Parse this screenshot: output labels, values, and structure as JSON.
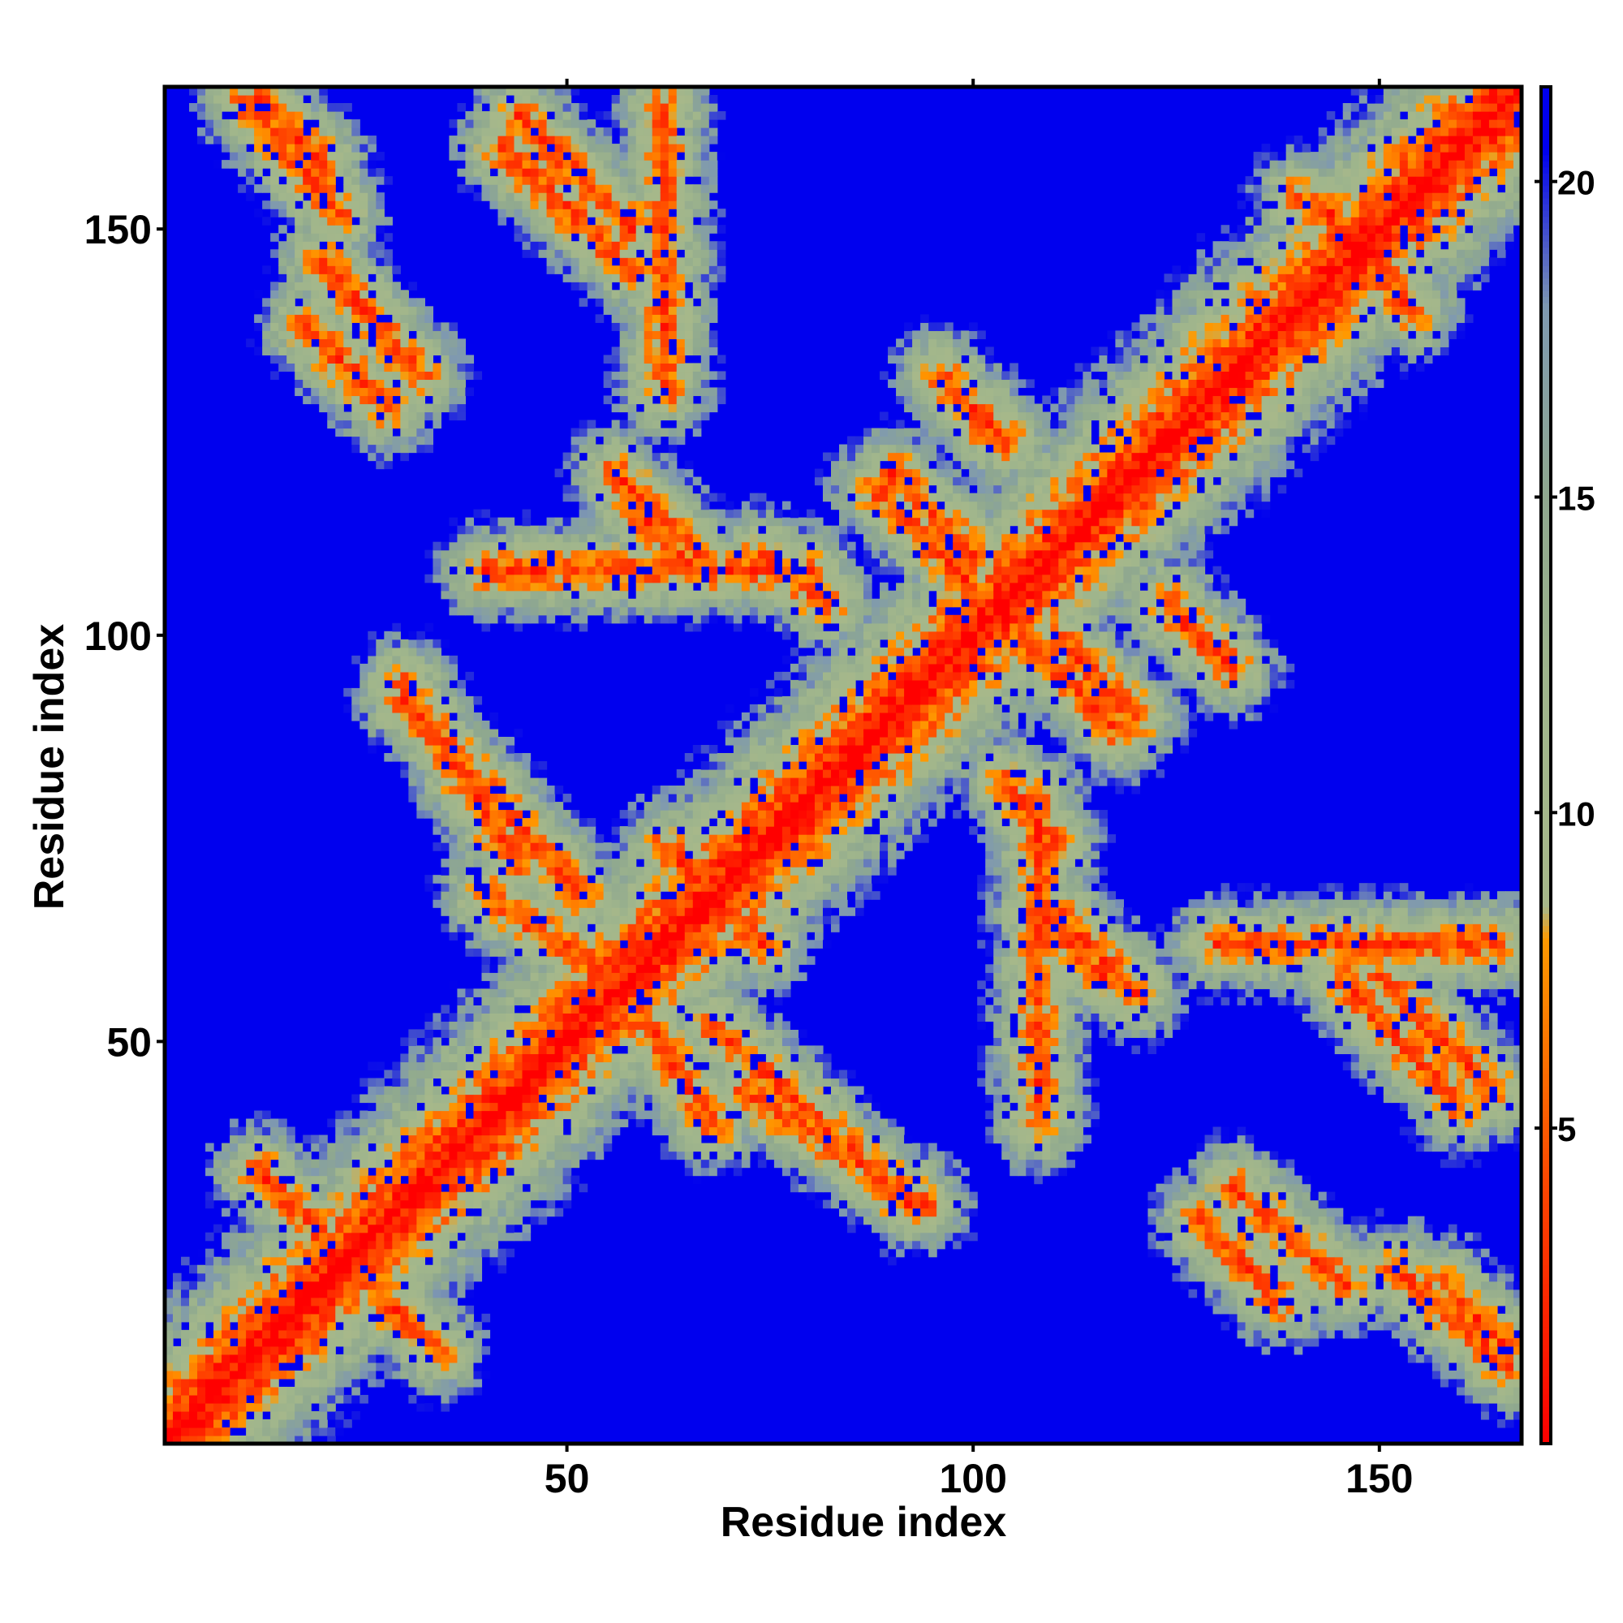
{
  "chart_data": {
    "type": "heatmap",
    "title": "",
    "xlabel": "Residue index",
    "ylabel": "Residue index",
    "n_residues": 167,
    "xlim": [
      0.5,
      167.5
    ],
    "ylim": [
      0.5,
      167.5
    ],
    "x_ticks": [
      50,
      100,
      150
    ],
    "y_ticks": [
      50,
      100,
      150
    ],
    "x_tick_labels": [
      "50",
      "100",
      "150"
    ],
    "y_tick_labels": [
      "50",
      "100",
      "150"
    ],
    "value_range": [
      0,
      21.5
    ],
    "colorbar_ticks": [
      5,
      10,
      15,
      20
    ],
    "colorbar_tick_labels": [
      "5",
      "10",
      "15",
      "20"
    ],
    "colorscale": [
      {
        "value": 0,
        "color": "#ff0000"
      },
      {
        "value": 4,
        "color": "#ff4400"
      },
      {
        "value": 8,
        "color": "#ff9900"
      },
      {
        "value": 8.5,
        "color": "#a7b88a"
      },
      {
        "value": 12,
        "color": "#9fb58c"
      },
      {
        "value": 15,
        "color": "#8fa88f"
      },
      {
        "value": 18,
        "color": "#7f99b0"
      },
      {
        "value": 20.5,
        "color": "#0000ee"
      }
    ],
    "background_color": "#0000ee",
    "contact_bands": [
      {
        "i": [
          2,
          65
        ],
        "j": [
          2,
          65
        ],
        "kind": "diagonal"
      },
      {
        "i": [
          16,
          34
        ],
        "j": [
          30,
          12
        ],
        "kind": "antiparallel"
      },
      {
        "i": [
          12,
          20
        ],
        "j": [
          166,
          158
        ],
        "kind": "antiparallel"
      },
      {
        "i": [
          44,
          58
        ],
        "j": [
          164,
          150
        ],
        "kind": "antiparallel"
      },
      {
        "i": [
          20,
          32
        ],
        "j": [
          146,
          132
        ],
        "kind": "antiparallel"
      },
      {
        "i": [
          56,
          66
        ],
        "j": [
          120,
          110
        ],
        "kind": "antiparallel"
      },
      {
        "i": [
          30,
          52
        ],
        "j": [
          92,
          68
        ],
        "kind": "antiparallel"
      },
      {
        "i": [
          55,
          68
        ],
        "j": [
          60,
          40
        ],
        "kind": "antiparallel"
      },
      {
        "i": [
          62,
          72
        ],
        "j": [
          74,
          64
        ],
        "kind": "antiparallel"
      },
      {
        "i": [
          96,
          104
        ],
        "j": [
          132,
          124
        ],
        "kind": "antiparallel"
      },
      {
        "i": [
          90,
          100
        ],
        "j": [
          120,
          110
        ],
        "kind": "antiparallel"
      },
      {
        "i": [
          106,
          118
        ],
        "j": [
          100,
          88
        ],
        "kind": "antiparallel"
      },
      {
        "i": [
          125,
          132
        ],
        "j": [
          102,
          96
        ],
        "kind": "antiparallel"
      },
      {
        "i": [
          108,
          116
        ],
        "j": [
          66,
          58
        ],
        "kind": "antiparallel"
      },
      {
        "i": [
          104,
          110
        ],
        "j": [
          82,
          74
        ],
        "kind": "antiparallel"
      },
      {
        "i": [
          128,
          138
        ],
        "j": [
          28,
          18
        ],
        "kind": "antiparallel"
      },
      {
        "i": [
          145,
          160
        ],
        "j": [
          58,
          42
        ],
        "kind": "antiparallel"
      },
      {
        "i": [
          152,
          166
        ],
        "j": [
          22,
          10
        ],
        "kind": "antiparallel"
      },
      {
        "i": [
          72,
          94
        ],
        "j": [
          44,
          30
        ],
        "kind": "antiparallel"
      },
      {
        "i": [
          140,
          152
        ],
        "j": [
          154,
          144
        ],
        "kind": "antiparallel"
      },
      {
        "i": [
          130,
          165
        ],
        "j": [
          130,
          165
        ],
        "kind": "diagonal"
      },
      {
        "i": [
          40,
          80
        ],
        "j": [
          108,
          108
        ],
        "kind": "row"
      },
      {
        "i": [
          130,
          165
        ],
        "j": [
          62,
          62
        ],
        "kind": "row"
      }
    ]
  }
}
